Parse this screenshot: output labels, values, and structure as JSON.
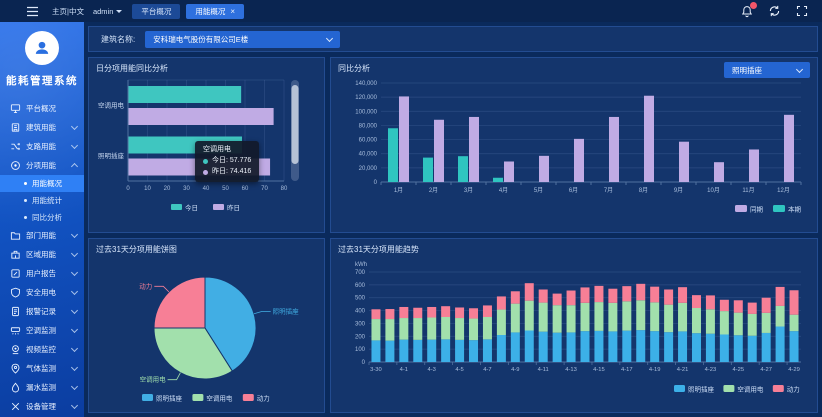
{
  "topbar": {
    "home_lang": "主页|中文",
    "user": "admin",
    "tabs": [
      {
        "label": "平台概况",
        "active": false,
        "closable": false
      },
      {
        "label": "用能概况",
        "active": true,
        "closable": true
      }
    ]
  },
  "sidebar": {
    "logo_title": "能耗管理系统",
    "items": [
      {
        "label": "平台概况",
        "icon": "monitor-icon",
        "expandable": false
      },
      {
        "label": "建筑用能",
        "icon": "building-icon",
        "expandable": true
      },
      {
        "label": "支路用能",
        "icon": "branch-icon",
        "expandable": true
      },
      {
        "label": "分项用能",
        "icon": "category-icon",
        "expandable": true,
        "expanded": true,
        "children": [
          {
            "label": "用能概况",
            "selected": true
          },
          {
            "label": "用能统计",
            "selected": false
          },
          {
            "label": "同比分析",
            "selected": false
          }
        ]
      },
      {
        "label": "部门用能",
        "icon": "department-icon",
        "expandable": true
      },
      {
        "label": "区域用能",
        "icon": "region-icon",
        "expandable": true
      },
      {
        "label": "用户报告",
        "icon": "report-icon",
        "expandable": true
      },
      {
        "label": "安全用电",
        "icon": "shield-icon",
        "expandable": true
      },
      {
        "label": "报警记录",
        "icon": "alarm-record-icon",
        "expandable": true
      },
      {
        "label": "空调监测",
        "icon": "ac-icon",
        "expandable": true
      },
      {
        "label": "视频监控",
        "icon": "video-icon",
        "expandable": true
      },
      {
        "label": "气体监测",
        "icon": "gas-icon",
        "expandable": true
      },
      {
        "label": "漏水监测",
        "icon": "water-icon",
        "expandable": true
      },
      {
        "label": "设备管理",
        "icon": "device-icon",
        "expandable": true
      }
    ]
  },
  "filter": {
    "label": "建筑名称:",
    "value": "安科瑞电气股份有限公司E楼"
  },
  "theme": {
    "teal": "#3fc6c0",
    "purple": "#c0abe4",
    "blue": "#3cb0e8",
    "green": "#a2e0ac",
    "pink": "#f77f96",
    "accent": "#2e70de"
  },
  "chart_data": [
    {
      "type": "bar",
      "orientation": "horizontal",
      "title": "日分项用能同比分析",
      "categories": [
        "空调用电",
        "照明插座"
      ],
      "series": [
        {
          "name": "今日",
          "color": "#3fc6c0",
          "values": [
            57.776,
            58.2
          ]
        },
        {
          "name": "昨日",
          "color": "#c0abe4",
          "values": [
            74.416,
            72.6
          ]
        }
      ],
      "xlim": [
        0,
        80
      ],
      "xtick_step": 10,
      "grid": true,
      "legend": [
        {
          "name": "今日",
          "color": "#3fc6c0"
        },
        {
          "name": "昨日",
          "color": "#c0abe4"
        }
      ],
      "legend_position": "bottom-center",
      "scrollbar": true,
      "tooltip": {
        "title": "空调用电",
        "rows": [
          {
            "label": "今日",
            "value": "57.776",
            "color": "#3fc6c0"
          },
          {
            "label": "昨日",
            "value": "74.416",
            "color": "#c0abe4"
          }
        ]
      }
    },
    {
      "type": "bar",
      "title": "同比分析",
      "filter_value": "照明插座",
      "categories": [
        "1月",
        "2月",
        "3月",
        "4月",
        "5月",
        "6月",
        "7月",
        "8月",
        "9月",
        "10月",
        "11月",
        "12月"
      ],
      "series": [
        {
          "name": "本期",
          "color": "#2fc5c0",
          "values": [
            76000,
            34500,
            36500,
            6000,
            0,
            0,
            0,
            0,
            0,
            0,
            0,
            0
          ]
        },
        {
          "name": "同期",
          "color": "#c0abe4",
          "values": [
            121000,
            88000,
            92000,
            29000,
            37000,
            61000,
            92000,
            122000,
            57000,
            28000,
            46000,
            95000
          ]
        }
      ],
      "ylim": [
        0,
        140000
      ],
      "ytick_step": 20000,
      "grid": true,
      "legend": [
        {
          "name": "同期",
          "color": "#c0abe4"
        },
        {
          "name": "本期",
          "color": "#2fc5c0"
        }
      ],
      "legend_position": "bottom-right"
    },
    {
      "type": "pie",
      "title": "过去31天分项用能饼图",
      "slices": [
        {
          "name": "照明插座",
          "pct": 41,
          "color": "#41aee4"
        },
        {
          "name": "空调用电",
          "pct": 34,
          "color": "#a2e0ac"
        },
        {
          "name": "动力",
          "pct": 25,
          "color": "#f77f96"
        }
      ],
      "legend": [
        {
          "name": "照明插座",
          "color": "#41aee4"
        },
        {
          "name": "空调用电",
          "color": "#a2e0ac"
        },
        {
          "name": "动力",
          "color": "#f77f96"
        }
      ],
      "legend_position": "bottom-center"
    },
    {
      "type": "bar",
      "stacked": true,
      "title": "过去31天分项用能趋势",
      "ylabel": "kWh",
      "categories": [
        "3-30",
        "3-31",
        "4-1",
        "4-2",
        "4-3",
        "4-4",
        "4-5",
        "4-6",
        "4-7",
        "4-8",
        "4-9",
        "4-10",
        "4-11",
        "4-12",
        "4-13",
        "4-14",
        "4-15",
        "4-16",
        "4-17",
        "4-18",
        "4-19",
        "4-20",
        "4-21",
        "4-22",
        "4-23",
        "4-24",
        "4-25",
        "4-26",
        "4-27",
        "4-28",
        "4-29"
      ],
      "series": [
        {
          "name": "照明插座",
          "color": "#3cb0e8",
          "values": [
            168,
            166,
            174,
            172,
            174,
            176,
            172,
            170,
            176,
            210,
            230,
            245,
            236,
            228,
            230,
            240,
            242,
            238,
            244,
            248,
            240,
            232,
            238,
            224,
            220,
            214,
            208,
            204,
            226,
            276,
            240
          ]
        },
        {
          "name": "空调用电",
          "color": "#a2e0ac",
          "values": [
            166,
            168,
            168,
            170,
            172,
            174,
            170,
            168,
            174,
            198,
            224,
            232,
            226,
            214,
            212,
            220,
            224,
            222,
            228,
            232,
            224,
            214,
            222,
            196,
            190,
            182,
            176,
            170,
            156,
            160,
            128
          ]
        },
        {
          "name": "动力",
          "color": "#f77f96",
          "values": [
            76,
            78,
            86,
            80,
            82,
            84,
            82,
            80,
            90,
            102,
            96,
            136,
            102,
            90,
            114,
            120,
            126,
            110,
            118,
            128,
            122,
            118,
            122,
            100,
            108,
            88,
            96,
            88,
            118,
            148,
            190
          ]
        }
      ],
      "ylim": [
        0,
        700
      ],
      "ytick_step": 100,
      "grid": true,
      "legend": [
        {
          "name": "照明插座",
          "color": "#3cb0e8"
        },
        {
          "name": "空调用电",
          "color": "#a2e0ac"
        },
        {
          "name": "动力",
          "color": "#f77f96"
        }
      ],
      "legend_position": "bottom-right"
    }
  ]
}
